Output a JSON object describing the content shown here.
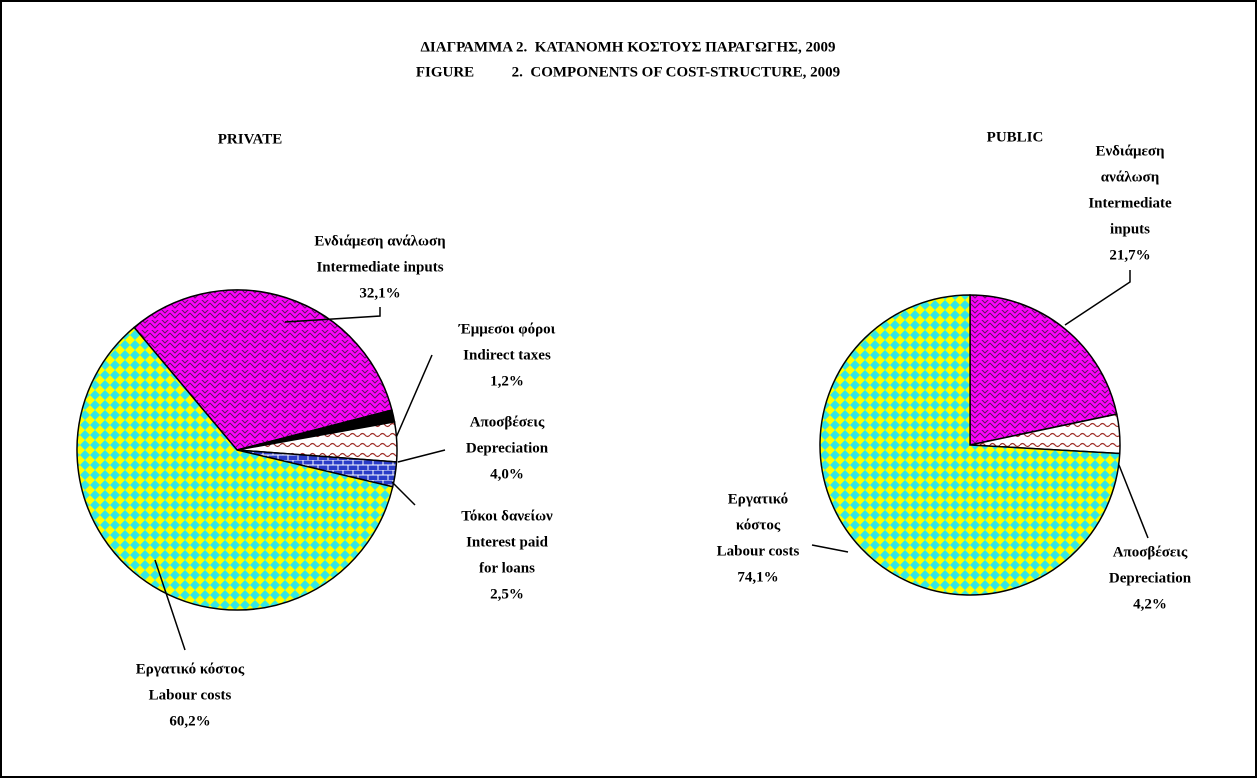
{
  "title": [
    "ΔΙΑΓΡΑΜΜΑ 2.  ΚΑΤΑΝΟΜΗ ΚΟΣΤΟΥΣ ΠΑΡΑΓΩΓΗΣ, 2009",
    "FIGURE          2.  COMPONENTS OF COST-STRUCTURE, 2009"
  ],
  "chart_data": [
    {
      "type": "pie",
      "title": "PRIVATE",
      "categories": [
        [
          "Ενδιάμεση ανάλωση",
          "Intermediate inputs"
        ],
        [
          "Έμμεσοι φόροι",
          "Indirect taxes"
        ],
        [
          "Αποσβέσεις",
          "Depreciation"
        ],
        [
          "Τόκοι δανείων",
          "Interest paid",
          "for loans"
        ],
        [
          "Εργατικό κόστος",
          "Labour costs"
        ]
      ],
      "values": [
        32.1,
        1.2,
        4.0,
        2.5,
        60.2
      ],
      "value_labels": [
        "32,1%",
        "1,2%",
        "4,0%",
        "2,5%",
        "60,2%"
      ],
      "colors": [
        "#ff00ff",
        "#000000",
        "#ffffff",
        "#2a3cc8",
        "#ffff00"
      ],
      "pattern_colors": [
        "#5a1a5a",
        "#000000",
        "#a0302a",
        "#ffffff",
        "#33e6e6"
      ]
    },
    {
      "type": "pie",
      "title": "PUBLIC",
      "categories": [
        [
          "Ενδιάμεση",
          "ανάλωση",
          "Intermediate",
          "inputs"
        ],
        [
          "Αποσβέσεις",
          "Depreciation"
        ],
        [
          "Εργατικό",
          "κόστος",
          "Labour costs"
        ]
      ],
      "values": [
        21.7,
        4.2,
        74.1
      ],
      "value_labels": [
        "21,7%",
        "4,2%",
        "74,1%"
      ],
      "colors": [
        "#ff00ff",
        "#ffffff",
        "#ffff00"
      ],
      "pattern_colors": [
        "#5a1a5a",
        "#a0302a",
        "#33e6e6"
      ]
    }
  ]
}
